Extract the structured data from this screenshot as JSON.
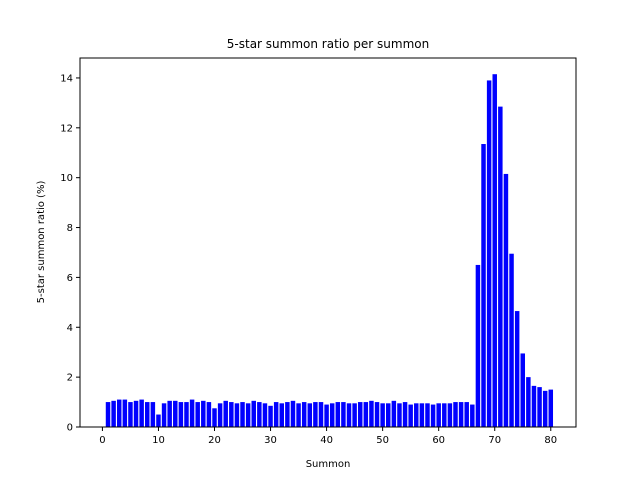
{
  "chart_data": {
    "type": "bar",
    "title": "5-star summon ratio per summon",
    "xlabel": "Summon",
    "ylabel": "5-star summon ratio (%)",
    "xlim": [
      -4,
      84.5
    ],
    "ylim": [
      0,
      14.8
    ],
    "x_ticks": [
      0,
      10,
      20,
      30,
      40,
      50,
      60,
      70,
      80
    ],
    "y_ticks": [
      0,
      2,
      4,
      6,
      8,
      10,
      12,
      14
    ],
    "bar_color": "#0000ff",
    "grid": false,
    "legend": "none",
    "x": [
      1,
      2,
      3,
      4,
      5,
      6,
      7,
      8,
      9,
      10,
      11,
      12,
      13,
      14,
      15,
      16,
      17,
      18,
      19,
      20,
      21,
      22,
      23,
      24,
      25,
      26,
      27,
      28,
      29,
      30,
      31,
      32,
      33,
      34,
      35,
      36,
      37,
      38,
      39,
      40,
      41,
      42,
      43,
      44,
      45,
      46,
      47,
      48,
      49,
      50,
      51,
      52,
      53,
      54,
      55,
      56,
      57,
      58,
      59,
      60,
      61,
      62,
      63,
      64,
      65,
      66,
      67,
      68,
      69,
      70,
      71,
      72,
      73,
      74,
      75,
      76,
      77,
      78,
      79,
      80
    ],
    "values": [
      1.0,
      1.05,
      1.1,
      1.1,
      1.0,
      1.05,
      1.1,
      1.0,
      1.0,
      0.5,
      0.95,
      1.05,
      1.05,
      1.0,
      1.0,
      1.1,
      1.0,
      1.05,
      1.0,
      0.75,
      0.95,
      1.05,
      1.0,
      0.95,
      1.0,
      0.95,
      1.05,
      1.0,
      0.95,
      0.85,
      1.0,
      0.95,
      1.0,
      1.05,
      0.95,
      1.0,
      0.95,
      1.0,
      1.0,
      0.9,
      0.95,
      1.0,
      1.0,
      0.95,
      0.95,
      1.0,
      1.0,
      1.05,
      1.0,
      0.95,
      0.95,
      1.05,
      0.95,
      1.0,
      0.9,
      0.95,
      0.95,
      0.95,
      0.9,
      0.95,
      0.95,
      0.95,
      1.0,
      1.0,
      1.0,
      0.9,
      6.5,
      11.35,
      13.9,
      14.15,
      12.85,
      10.15,
      6.95,
      4.65,
      2.95,
      2.0,
      1.65,
      1.6,
      1.45,
      1.5
    ]
  }
}
